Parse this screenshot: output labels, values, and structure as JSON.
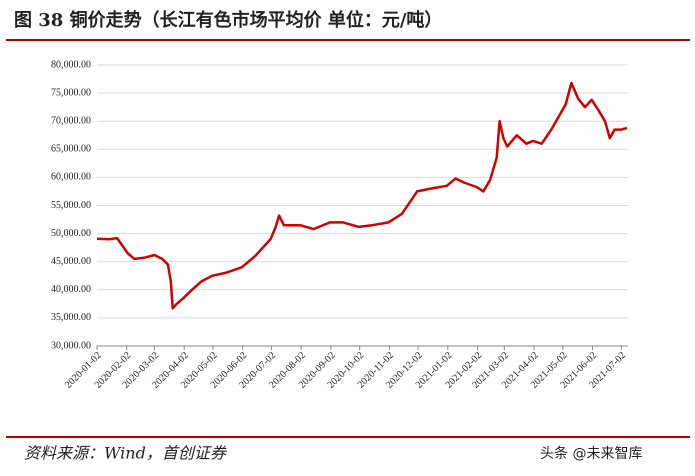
{
  "chart_data": {
    "type": "line",
    "title": "图 38  铜价走势（长江有色市场平均价  单位：元/吨）",
    "source": "资料来源：Wind，首创证券",
    "watermark": "头条 @未来智库",
    "x": [
      "2020-01-02",
      "2020-01-15",
      "2020-01-23",
      "2020-02-03",
      "2020-02-10",
      "2020-02-20",
      "2020-03-02",
      "2020-03-10",
      "2020-03-16",
      "2020-03-19",
      "2020-03-21",
      "2020-03-25",
      "2020-04-01",
      "2020-04-10",
      "2020-04-20",
      "2020-05-01",
      "2020-05-15",
      "2020-06-01",
      "2020-06-15",
      "2020-07-01",
      "2020-07-06",
      "2020-07-10",
      "2020-07-15",
      "2020-08-01",
      "2020-08-15",
      "2020-09-01",
      "2020-09-15",
      "2020-10-01",
      "2020-10-15",
      "2020-11-01",
      "2020-11-15",
      "2020-11-25",
      "2020-12-01",
      "2020-12-15",
      "2021-01-01",
      "2021-01-10",
      "2021-01-20",
      "2021-02-01",
      "2021-02-08",
      "2021-02-15",
      "2021-02-22",
      "2021-02-25",
      "2021-03-01",
      "2021-03-05",
      "2021-03-15",
      "2021-03-25",
      "2021-04-01",
      "2021-04-10",
      "2021-04-20",
      "2021-04-30",
      "2021-05-05",
      "2021-05-11",
      "2021-05-18",
      "2021-05-25",
      "2021-06-01",
      "2021-06-08",
      "2021-06-15",
      "2021-06-20",
      "2021-06-25",
      "2021-07-02",
      "2021-07-08"
    ],
    "series": [
      {
        "name": "铜价",
        "color": "#d00000",
        "values": [
          49100,
          49000,
          49200,
          46500,
          45500,
          45700,
          46200,
          45500,
          44500,
          41500,
          36700,
          37500,
          38500,
          40000,
          41500,
          42500,
          43000,
          44000,
          46000,
          49000,
          51000,
          53200,
          51500,
          51500,
          50800,
          52000,
          52000,
          51200,
          51500,
          52000,
          53500,
          56000,
          57500,
          58000,
          58500,
          59800,
          59000,
          58300,
          57500,
          59500,
          63500,
          70000,
          67000,
          65500,
          67500,
          66000,
          66500,
          66000,
          68500,
          71500,
          73000,
          76800,
          74000,
          72500,
          73800,
          72000,
          70000,
          67000,
          68500,
          68500,
          68800
        ]
      }
    ],
    "xlim": [
      "2020-01-02",
      "2021-07-09"
    ],
    "xticks": [
      "2020-01-02",
      "2020-02-02",
      "2020-03-02",
      "2020-04-02",
      "2020-05-02",
      "2020-06-02",
      "2020-07-02",
      "2020-08-02",
      "2020-09-02",
      "2020-10-02",
      "2020-11-02",
      "2020-12-02",
      "2021-01-02",
      "2021-02-02",
      "2021-03-02",
      "2021-04-02",
      "2021-05-02",
      "2021-06-02",
      "2021-07-02"
    ],
    "ylim": [
      30000,
      80000
    ],
    "yticks": [
      {
        "value": 30000,
        "label": "30,000.00"
      },
      {
        "value": 35000,
        "label": "35,000.00"
      },
      {
        "value": 40000,
        "label": "40,000.00"
      },
      {
        "value": 45000,
        "label": "45,000.00"
      },
      {
        "value": 50000,
        "label": "50,000.00"
      },
      {
        "value": 55000,
        "label": "55,000.00"
      },
      {
        "value": 60000,
        "label": "60,000.00"
      },
      {
        "value": 65000,
        "label": "65,000.00"
      },
      {
        "value": 70000,
        "label": "70,000.00"
      },
      {
        "value": 75000,
        "label": "75,000.00"
      },
      {
        "value": 80000,
        "label": "80,000.00"
      }
    ],
    "grid": true
  }
}
